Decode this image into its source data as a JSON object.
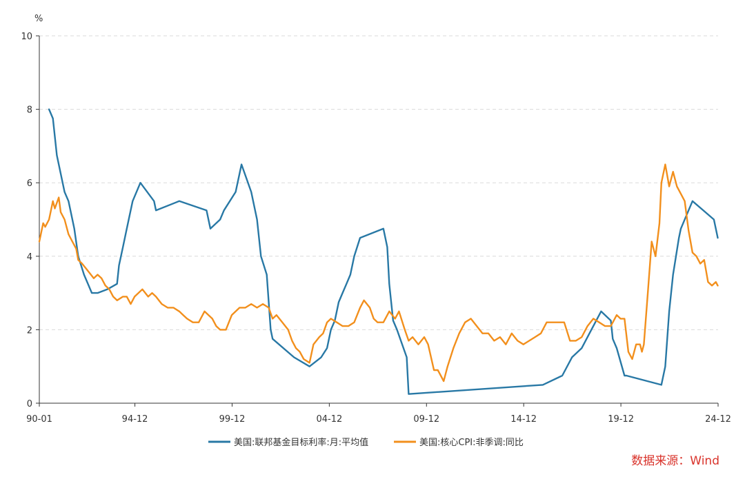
{
  "chart_data": {
    "type": "line",
    "ylabel": "%",
    "ylim": [
      0,
      10
    ],
    "yticks": [
      "0",
      "2",
      "4",
      "6",
      "8",
      "10"
    ],
    "xlim": [
      1990.0,
      2024.917
    ],
    "xtick_labels": [
      "90-01",
      "94-12",
      "99-12",
      "04-12",
      "09-12",
      "14-12",
      "19-12",
      "24-12"
    ],
    "xtick_positions": [
      1990.0,
      1994.917,
      1999.917,
      2004.917,
      2009.917,
      2014.917,
      2019.917,
      2024.917
    ],
    "grid": "horizontal dashed",
    "legend_position": "bottom",
    "colors": {
      "fed_funds": "#2878a5",
      "core_cpi": "#f28f1c",
      "source": "#d9332b"
    },
    "series": [
      {
        "name": "美国:联邦基金目标利率:月:平均值",
        "color": "#2878a5",
        "x": [
          1990.5,
          1990.7,
          1990.9,
          1991.1,
          1991.3,
          1991.5,
          1991.8,
          1992.0,
          1992.3,
          1992.7,
          1993.0,
          1993.5,
          1994.0,
          1994.1,
          1994.3,
          1994.5,
          1994.8,
          1995.2,
          1995.9,
          1996.0,
          1997.2,
          1998.6,
          1998.8,
          1999.3,
          1999.5,
          2000.1,
          2000.4,
          2000.9,
          2001.2,
          2001.4,
          2001.7,
          2001.9,
          2002.0,
          2003.1,
          2003.9,
          2004.5,
          2004.8,
          2005.0,
          2005.2,
          2005.4,
          2005.6,
          2005.8,
          2006.0,
          2006.2,
          2006.5,
          2007.7,
          2007.9,
          2008.0,
          2008.2,
          2008.4,
          2008.9,
          2009.0,
          2015.9,
          2016.9,
          2017.4,
          2017.9,
          2018.4,
          2018.9,
          2019.4,
          2019.5,
          2019.7,
          2020.1,
          2020.2,
          2022.0,
          2022.2,
          2022.4,
          2022.6,
          2022.9,
          2023.0,
          2023.4,
          2023.6,
          2024.7,
          2024.8,
          2024.9
        ],
        "values": [
          8.0,
          7.75,
          6.75,
          6.25,
          5.75,
          5.5,
          4.75,
          4.0,
          3.5,
          3.0,
          3.0,
          3.1,
          3.25,
          3.75,
          4.25,
          4.75,
          5.5,
          6.0,
          5.5,
          5.25,
          5.5,
          5.25,
          4.75,
          5.0,
          5.25,
          5.75,
          6.5,
          5.75,
          5.0,
          4.0,
          3.5,
          2.0,
          1.75,
          1.25,
          1.0,
          1.25,
          1.5,
          2.0,
          2.25,
          2.75,
          3.0,
          3.25,
          3.5,
          4.0,
          4.5,
          4.75,
          4.25,
          3.25,
          2.25,
          2.0,
          1.25,
          0.25,
          0.5,
          0.75,
          1.25,
          1.5,
          2.0,
          2.5,
          2.25,
          1.75,
          1.5,
          0.75,
          0.75,
          0.5,
          1.0,
          2.5,
          3.5,
          4.5,
          4.75,
          5.25,
          5.5,
          5.0,
          4.75,
          4.5
        ]
      },
      {
        "name": "美国:核心CPI:非季调:同比",
        "color": "#f28f1c",
        "x": [
          1990.0,
          1990.2,
          1990.3,
          1990.5,
          1990.7,
          1990.8,
          1991.0,
          1991.1,
          1991.3,
          1991.5,
          1991.7,
          1991.9,
          1992.0,
          1992.2,
          1992.5,
          1992.8,
          1993.0,
          1993.2,
          1993.4,
          1993.6,
          1993.8,
          1994.0,
          1994.3,
          1994.5,
          1994.7,
          1994.9,
          1995.1,
          1995.3,
          1995.6,
          1995.8,
          1996.0,
          1996.3,
          1996.6,
          1996.9,
          1997.2,
          1997.4,
          1997.6,
          1997.9,
          1998.2,
          1998.5,
          1998.7,
          1998.9,
          1999.1,
          1999.3,
          1999.6,
          1999.9,
          2000.3,
          2000.6,
          2000.9,
          2001.2,
          2001.5,
          2001.8,
          2002.0,
          2002.2,
          2002.5,
          2002.8,
          2003.0,
          2003.2,
          2003.4,
          2003.6,
          2003.9,
          2004.1,
          2004.4,
          2004.6,
          2004.8,
          2005.0,
          2005.3,
          2005.6,
          2005.9,
          2006.2,
          2006.5,
          2006.7,
          2007.0,
          2007.2,
          2007.4,
          2007.7,
          2008.0,
          2008.3,
          2008.5,
          2008.8,
          2009.0,
          2009.2,
          2009.5,
          2009.8,
          2010.0,
          2010.3,
          2010.5,
          2010.8,
          2011.0,
          2011.3,
          2011.6,
          2011.9,
          2012.2,
          2012.5,
          2012.8,
          2013.1,
          2013.4,
          2013.7,
          2014.0,
          2014.3,
          2014.6,
          2014.9,
          2015.2,
          2015.5,
          2015.8,
          2016.1,
          2016.4,
          2016.7,
          2017.0,
          2017.3,
          2017.6,
          2017.9,
          2018.2,
          2018.5,
          2018.8,
          2019.1,
          2019.4,
          2019.7,
          2019.9,
          2020.1,
          2020.3,
          2020.5,
          2020.7,
          2020.9,
          2021.0,
          2021.1,
          2021.3,
          2021.5,
          2021.7,
          2021.9,
          2022.0,
          2022.2,
          2022.4,
          2022.6,
          2022.8,
          2023.0,
          2023.2,
          2023.4,
          2023.6,
          2023.8,
          2024.0,
          2024.2,
          2024.4,
          2024.6,
          2024.8,
          2024.9
        ],
        "values": [
          4.4,
          4.9,
          4.8,
          5.0,
          5.5,
          5.3,
          5.6,
          5.2,
          5.0,
          4.6,
          4.4,
          4.2,
          3.9,
          3.8,
          3.6,
          3.4,
          3.5,
          3.4,
          3.2,
          3.1,
          2.9,
          2.8,
          2.9,
          2.9,
          2.7,
          2.9,
          3.0,
          3.1,
          2.9,
          3.0,
          2.9,
          2.7,
          2.6,
          2.6,
          2.5,
          2.4,
          2.3,
          2.2,
          2.2,
          2.5,
          2.4,
          2.3,
          2.1,
          2.0,
          2.0,
          2.4,
          2.6,
          2.6,
          2.7,
          2.6,
          2.7,
          2.6,
          2.3,
          2.4,
          2.2,
          2.0,
          1.7,
          1.5,
          1.4,
          1.2,
          1.1,
          1.6,
          1.8,
          1.9,
          2.2,
          2.3,
          2.2,
          2.1,
          2.1,
          2.2,
          2.6,
          2.8,
          2.6,
          2.3,
          2.2,
          2.2,
          2.5,
          2.3,
          2.5,
          2.0,
          1.7,
          1.8,
          1.6,
          1.8,
          1.6,
          0.9,
          0.9,
          0.6,
          1.0,
          1.5,
          1.9,
          2.2,
          2.3,
          2.1,
          1.9,
          1.9,
          1.7,
          1.8,
          1.6,
          1.9,
          1.7,
          1.6,
          1.7,
          1.8,
          1.9,
          2.2,
          2.2,
          2.2,
          2.2,
          1.7,
          1.7,
          1.8,
          2.1,
          2.3,
          2.2,
          2.1,
          2.1,
          2.4,
          2.3,
          2.3,
          1.4,
          1.2,
          1.6,
          1.6,
          1.4,
          1.6,
          3.0,
          4.4,
          4.0,
          4.9,
          6.0,
          6.5,
          5.9,
          6.3,
          5.9,
          5.7,
          5.5,
          4.7,
          4.1,
          4.0,
          3.8,
          3.9,
          3.3,
          3.2,
          3.3,
          3.2
        ]
      }
    ],
    "source": "数据来源：Wind"
  }
}
